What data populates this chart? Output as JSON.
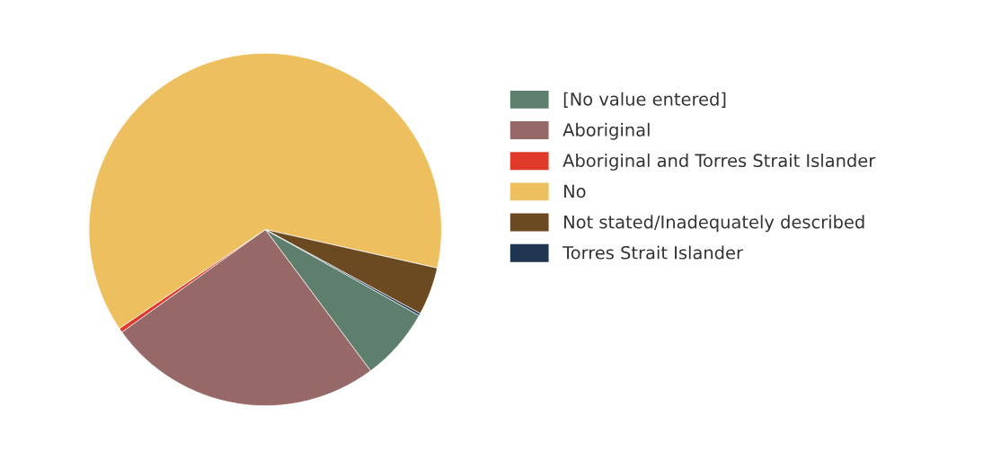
{
  "chart_data": {
    "type": "pie",
    "categories": [
      "[No value entered]",
      "Aboriginal",
      "Aboriginal and Torres Strait Islander",
      "No",
      "Not stated/Inadequately described",
      "Torres Strait Islander"
    ],
    "values": [
      6.7,
      25.3,
      0.4,
      63.0,
      4.4,
      0.2
    ],
    "colors": [
      "#5f7f6e",
      "#966868",
      "#e03a2a",
      "#eebf5f",
      "#6b4a22",
      "#1f3550"
    ],
    "legend": "right"
  }
}
